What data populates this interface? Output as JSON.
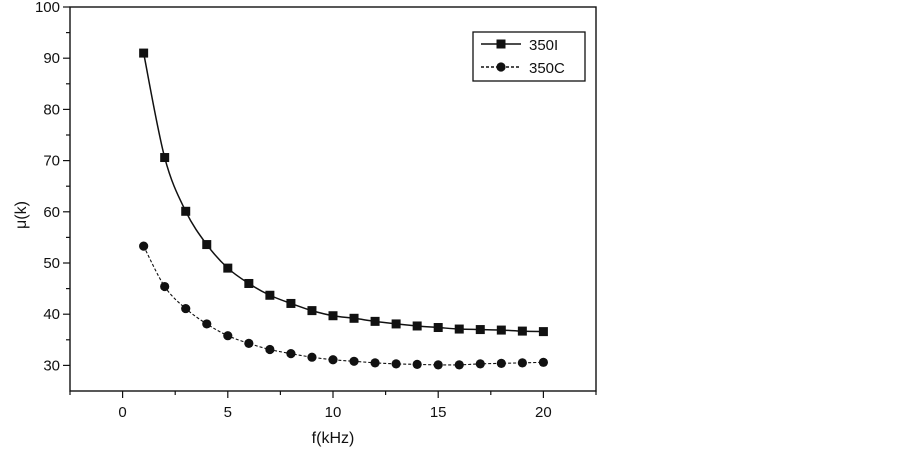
{
  "chart_data": {
    "type": "line",
    "xlabel": "f(kHz)",
    "ylabel": "μ(k)",
    "xlim": [
      -2.5,
      22.5
    ],
    "ylim": [
      25,
      100
    ],
    "xticks": [
      0,
      5,
      10,
      15,
      20
    ],
    "yticks": [
      30,
      40,
      50,
      60,
      70,
      80,
      90,
      100
    ],
    "grid": false,
    "legend_position": "top-right",
    "series": [
      {
        "name": "350I",
        "marker": "square",
        "line_style": "solid",
        "color": "#111111",
        "x": [
          1,
          2,
          3,
          4,
          5,
          6,
          7,
          8,
          9,
          10,
          11,
          12,
          13,
          14,
          15,
          16,
          17,
          18,
          19,
          20
        ],
        "y": [
          91.0,
          70.6,
          60.1,
          53.6,
          49.0,
          46.0,
          43.7,
          42.1,
          40.7,
          39.7,
          39.2,
          38.6,
          38.1,
          37.7,
          37.4,
          37.1,
          37.0,
          36.9,
          36.7,
          36.6
        ]
      },
      {
        "name": "350C",
        "marker": "circle",
        "line_style": "dashed",
        "color": "#111111",
        "x": [
          1,
          2,
          3,
          4,
          5,
          6,
          7,
          8,
          9,
          10,
          11,
          12,
          13,
          14,
          15,
          16,
          17,
          18,
          19,
          20
        ],
        "y": [
          53.3,
          45.4,
          41.1,
          38.1,
          35.8,
          34.3,
          33.1,
          32.3,
          31.6,
          31.1,
          30.8,
          30.5,
          30.3,
          30.2,
          30.1,
          30.1,
          30.3,
          30.4,
          30.5,
          30.6
        ]
      }
    ]
  }
}
